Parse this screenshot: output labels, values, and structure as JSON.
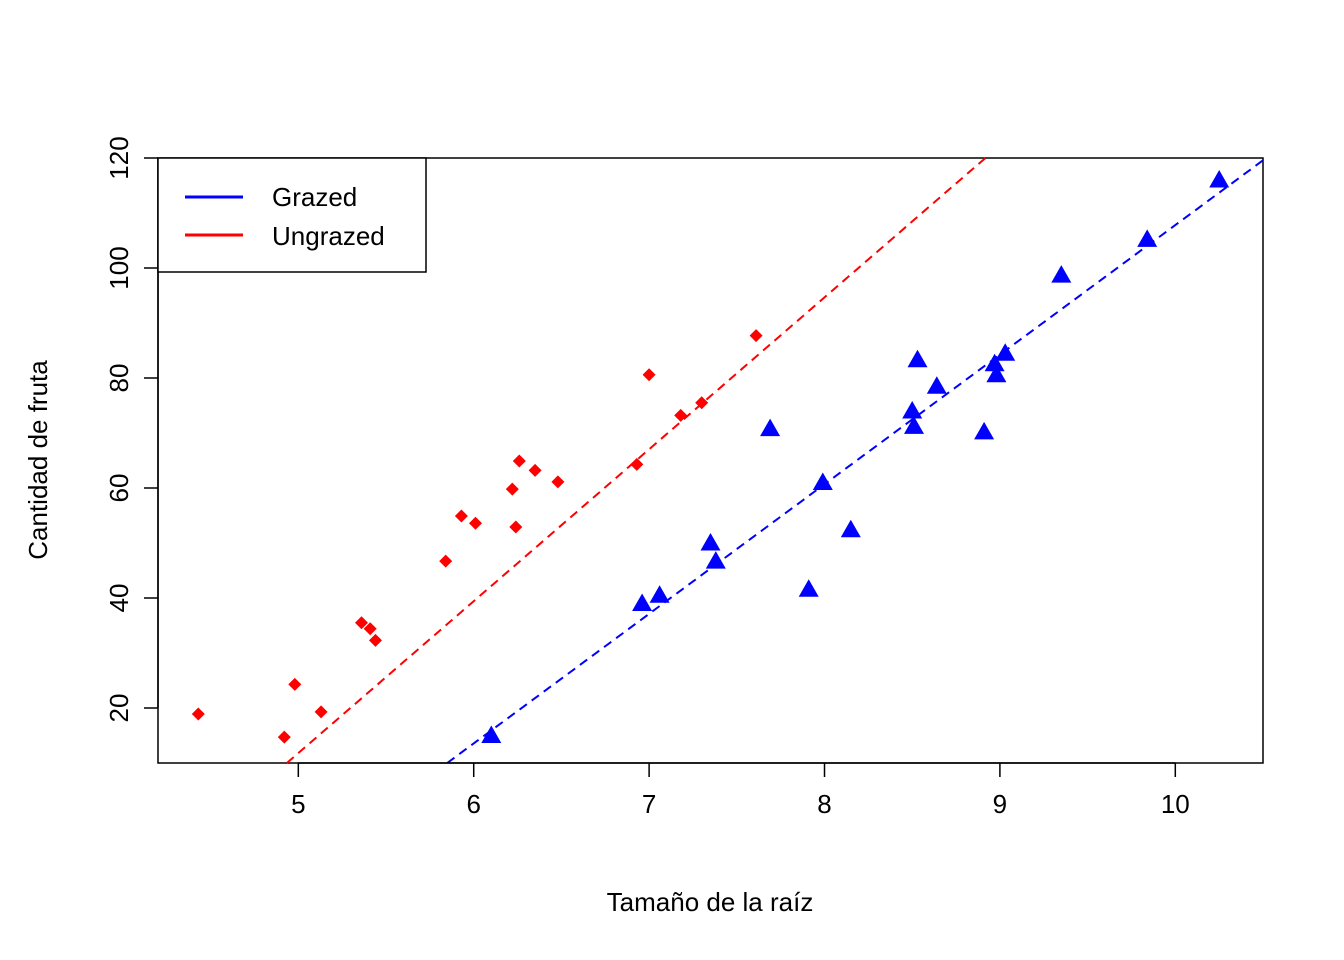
{
  "chart_data": {
    "type": "scatter",
    "title": "",
    "xlabel": "Tamaño de la raíz",
    "ylabel": "Cantidad de fruta",
    "xlim": [
      4.2,
      10.5
    ],
    "ylim": [
      10,
      120
    ],
    "xticks": [
      5,
      6,
      7,
      8,
      9,
      10
    ],
    "yticks": [
      20,
      40,
      60,
      80,
      100,
      120
    ],
    "x_tick_labels": [
      "5",
      "6",
      "7",
      "8",
      "9",
      "10"
    ],
    "y_tick_labels": [
      "20",
      "40",
      "60",
      "80",
      "100",
      "120"
    ],
    "grid": false,
    "legend_position": "top-left",
    "series": [
      {
        "name": "Grazed",
        "color": "#0000ff",
        "marker": "triangle",
        "x": [
          6.1,
          6.96,
          7.06,
          7.35,
          7.38,
          7.69,
          7.91,
          7.99,
          8.15,
          8.5,
          8.51,
          8.53,
          8.64,
          8.91,
          8.97,
          8.98,
          9.03,
          9.35,
          9.84,
          10.25
        ],
        "y": [
          15.0,
          39.0,
          40.5,
          50.0,
          46.7,
          70.8,
          41.6,
          61.0,
          52.4,
          74.0,
          71.2,
          83.3,
          78.5,
          70.2,
          82.6,
          80.6,
          84.5,
          98.7,
          105.2,
          116.0
        ],
        "fit": {
          "intercept": -127.8,
          "slope": 23.56
        }
      },
      {
        "name": "Ungrazed",
        "color": "#ff0000",
        "marker": "diamond",
        "x": [
          4.43,
          4.92,
          4.98,
          5.13,
          5.36,
          5.41,
          5.44,
          5.84,
          5.93,
          6.01,
          6.22,
          6.24,
          6.26,
          6.35,
          6.48,
          6.93,
          7.0,
          7.18,
          7.3,
          7.61
        ],
        "y": [
          18.9,
          14.7,
          24.3,
          19.3,
          35.5,
          34.4,
          32.3,
          46.7,
          54.9,
          53.6,
          59.8,
          52.9,
          64.9,
          63.2,
          61.1,
          64.3,
          80.6,
          73.2,
          75.5,
          87.7
        ],
        "fit": {
          "intercept": -126.3,
          "slope": 27.62
        }
      }
    ]
  }
}
